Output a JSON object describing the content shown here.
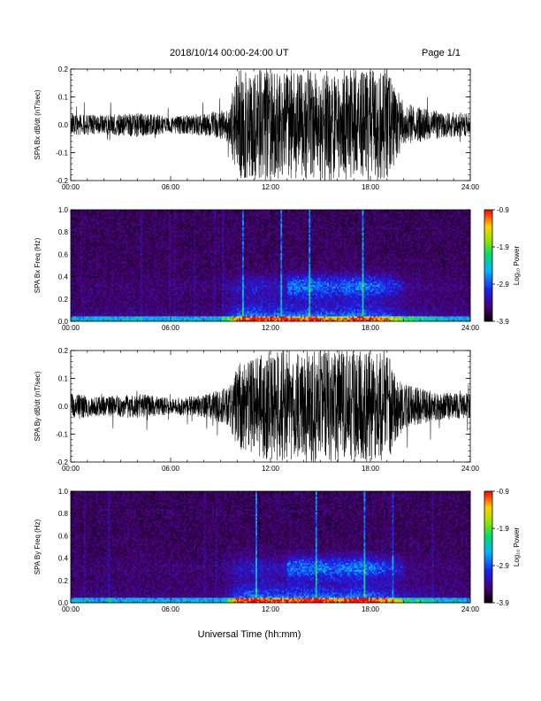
{
  "header": {
    "title": "2018/10/14  00:00-24:00 UT",
    "page": "Page 1/1"
  },
  "xaxis": {
    "title": "Universal Time (hh:mm)",
    "tick_labels": [
      "00:00",
      "06:00",
      "12:00",
      "18:00",
      "24:00"
    ]
  },
  "chart_data": [
    {
      "type": "line",
      "ylabel": "SPA Bx dB/dt (nT/sec)",
      "xlim": [
        0,
        24
      ],
      "ylim": [
        -0.2,
        0.2
      ],
      "yticks": [
        "-0.2",
        "-0.1",
        "0.0",
        "0.1",
        "0.2"
      ],
      "x": [
        0,
        2,
        4,
        6,
        8,
        9.5,
        10,
        12,
        14,
        16,
        18,
        19,
        20,
        22,
        24
      ],
      "amplitude": [
        0.04,
        0.035,
        0.045,
        0.03,
        0.04,
        0.06,
        0.2,
        0.2,
        0.2,
        0.2,
        0.2,
        0.2,
        0.08,
        0.05,
        0.04
      ],
      "color": "#000000"
    },
    {
      "type": "heatmap",
      "ylabel": "SPA Bx Freq (Hz)",
      "xlim": [
        0,
        24
      ],
      "ylim": [
        0.0,
        1.0
      ],
      "yticks": [
        "0.0",
        "0.2",
        "0.4",
        "0.6",
        "0.8",
        "1.0"
      ],
      "colorbar": {
        "label": "Log₁₀ Power",
        "range": [
          -3.9,
          -0.9
        ],
        "ticks": [
          "-0.9",
          "-1.9",
          "-2.9",
          "-3.9"
        ]
      },
      "activity": {
        "x": [
          0,
          3,
          6,
          9,
          10,
          11,
          12,
          14,
          16,
          17.5,
          19,
          20,
          22,
          24
        ],
        "level": [
          0.12,
          0.15,
          0.12,
          0.15,
          0.7,
          0.85,
          0.75,
          0.8,
          0.7,
          0.85,
          0.6,
          0.35,
          0.18,
          0.12
        ]
      }
    },
    {
      "type": "line",
      "ylabel": "SPA By dB/dt (nT/sec)",
      "xlim": [
        0,
        24
      ],
      "ylim": [
        -0.2,
        0.2
      ],
      "yticks": [
        "-0.2",
        "-0.1",
        "0.0",
        "0.1",
        "0.2"
      ],
      "x": [
        0,
        2,
        4,
        6,
        8,
        9.5,
        10,
        12,
        14,
        16,
        18,
        19,
        20,
        22,
        24
      ],
      "amplitude": [
        0.045,
        0.035,
        0.045,
        0.03,
        0.04,
        0.07,
        0.15,
        0.2,
        0.2,
        0.2,
        0.2,
        0.2,
        0.08,
        0.05,
        0.045
      ],
      "color": "#000000"
    },
    {
      "type": "heatmap",
      "ylabel": "SPA By Freq (Hz)",
      "xlim": [
        0,
        24
      ],
      "ylim": [
        0.0,
        1.0
      ],
      "yticks": [
        "0.0",
        "0.2",
        "0.4",
        "0.6",
        "0.8",
        "1.0"
      ],
      "colorbar": {
        "label": "Log₁₀ Power",
        "range": [
          -3.9,
          -0.9
        ],
        "ticks": [
          "-0.9",
          "-1.9",
          "-2.9",
          "-3.9"
        ]
      },
      "activity": {
        "x": [
          0,
          3,
          6,
          9,
          10,
          11,
          12,
          14,
          16,
          17.5,
          19,
          20,
          22,
          24
        ],
        "level": [
          0.12,
          0.15,
          0.12,
          0.15,
          0.7,
          0.85,
          0.75,
          0.8,
          0.75,
          0.85,
          0.6,
          0.35,
          0.18,
          0.12
        ]
      }
    }
  ]
}
